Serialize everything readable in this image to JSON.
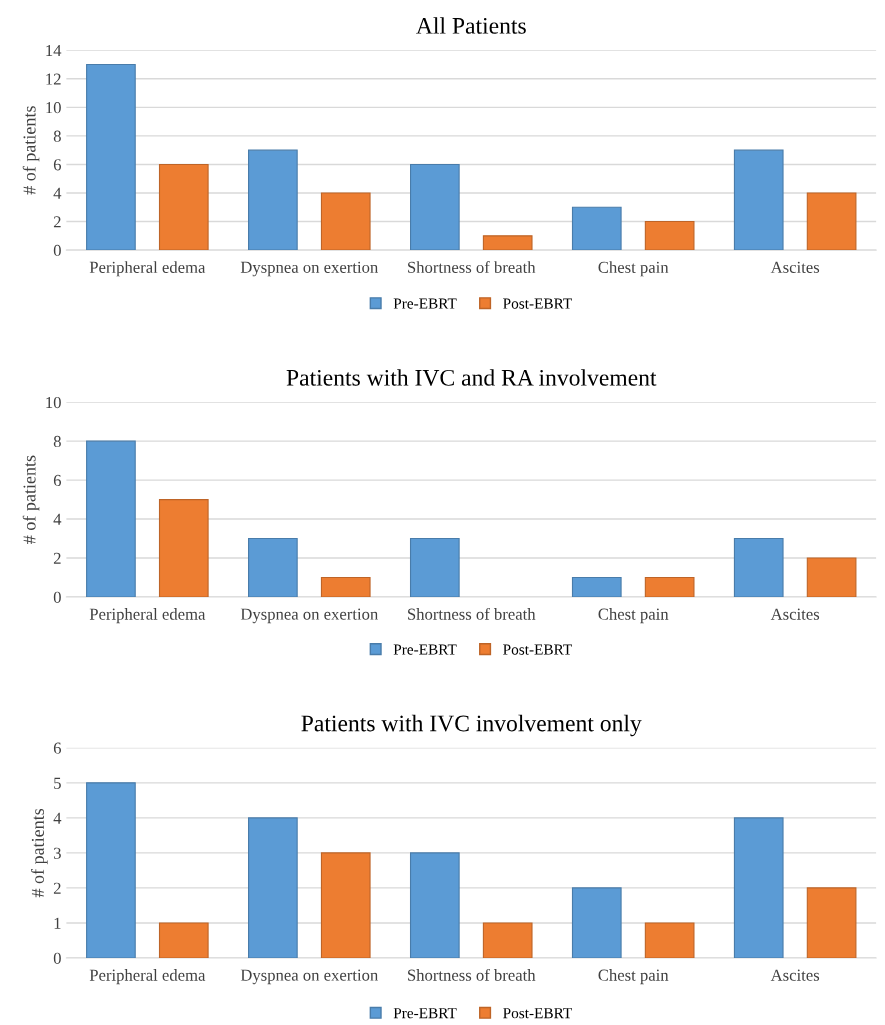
{
  "chart_data": [
    {
      "type": "bar",
      "title": "All Patients",
      "ylabel": "# of patients",
      "categories": [
        "Peripheral edema",
        "Dyspnea on exertion",
        "Shortness of breath",
        "Chest pain",
        "Ascites"
      ],
      "series": [
        {
          "name": "Pre-EBRT",
          "color": "#5b9bd5",
          "values": [
            13,
            7,
            6,
            3,
            7
          ]
        },
        {
          "name": "Post-EBRT",
          "color": "#ed7d31",
          "values": [
            6,
            4,
            1,
            2,
            4
          ]
        }
      ],
      "ylim": [
        0,
        14
      ],
      "yticks": [
        0,
        2,
        4,
        6,
        8,
        10,
        12,
        14
      ],
      "grid": "y",
      "legend": "bottom"
    },
    {
      "type": "bar",
      "title": "Patients with IVC and RA involvement",
      "ylabel": "# of patients",
      "categories": [
        "Peripheral edema",
        "Dyspnea on exertion",
        "Shortness of breath",
        "Chest pain",
        "Ascites"
      ],
      "series": [
        {
          "name": "Pre-EBRT",
          "color": "#5b9bd5",
          "values": [
            8,
            3,
            3,
            1,
            3
          ]
        },
        {
          "name": "Post-EBRT",
          "color": "#ed7d31",
          "values": [
            5,
            1,
            0,
            1,
            2
          ]
        }
      ],
      "ylim": [
        0,
        10
      ],
      "yticks": [
        0,
        2,
        4,
        6,
        8,
        10
      ],
      "grid": "y",
      "legend": "bottom"
    },
    {
      "type": "bar",
      "title": "Patients with IVC involvement only",
      "ylabel": "# of patients",
      "categories": [
        "Peripheral edema",
        "Dyspnea on exertion",
        "Shortness of breath",
        "Chest pain",
        "Ascites"
      ],
      "series": [
        {
          "name": "Pre-EBRT",
          "color": "#5b9bd5",
          "values": [
            5,
            4,
            3,
            2,
            4
          ]
        },
        {
          "name": "Post-EBRT",
          "color": "#ed7d31",
          "values": [
            1,
            3,
            1,
            1,
            2
          ]
        }
      ],
      "ylim": [
        0,
        6
      ],
      "yticks": [
        0,
        1,
        2,
        3,
        4,
        5,
        6
      ],
      "grid": "y",
      "legend": "bottom"
    }
  ]
}
